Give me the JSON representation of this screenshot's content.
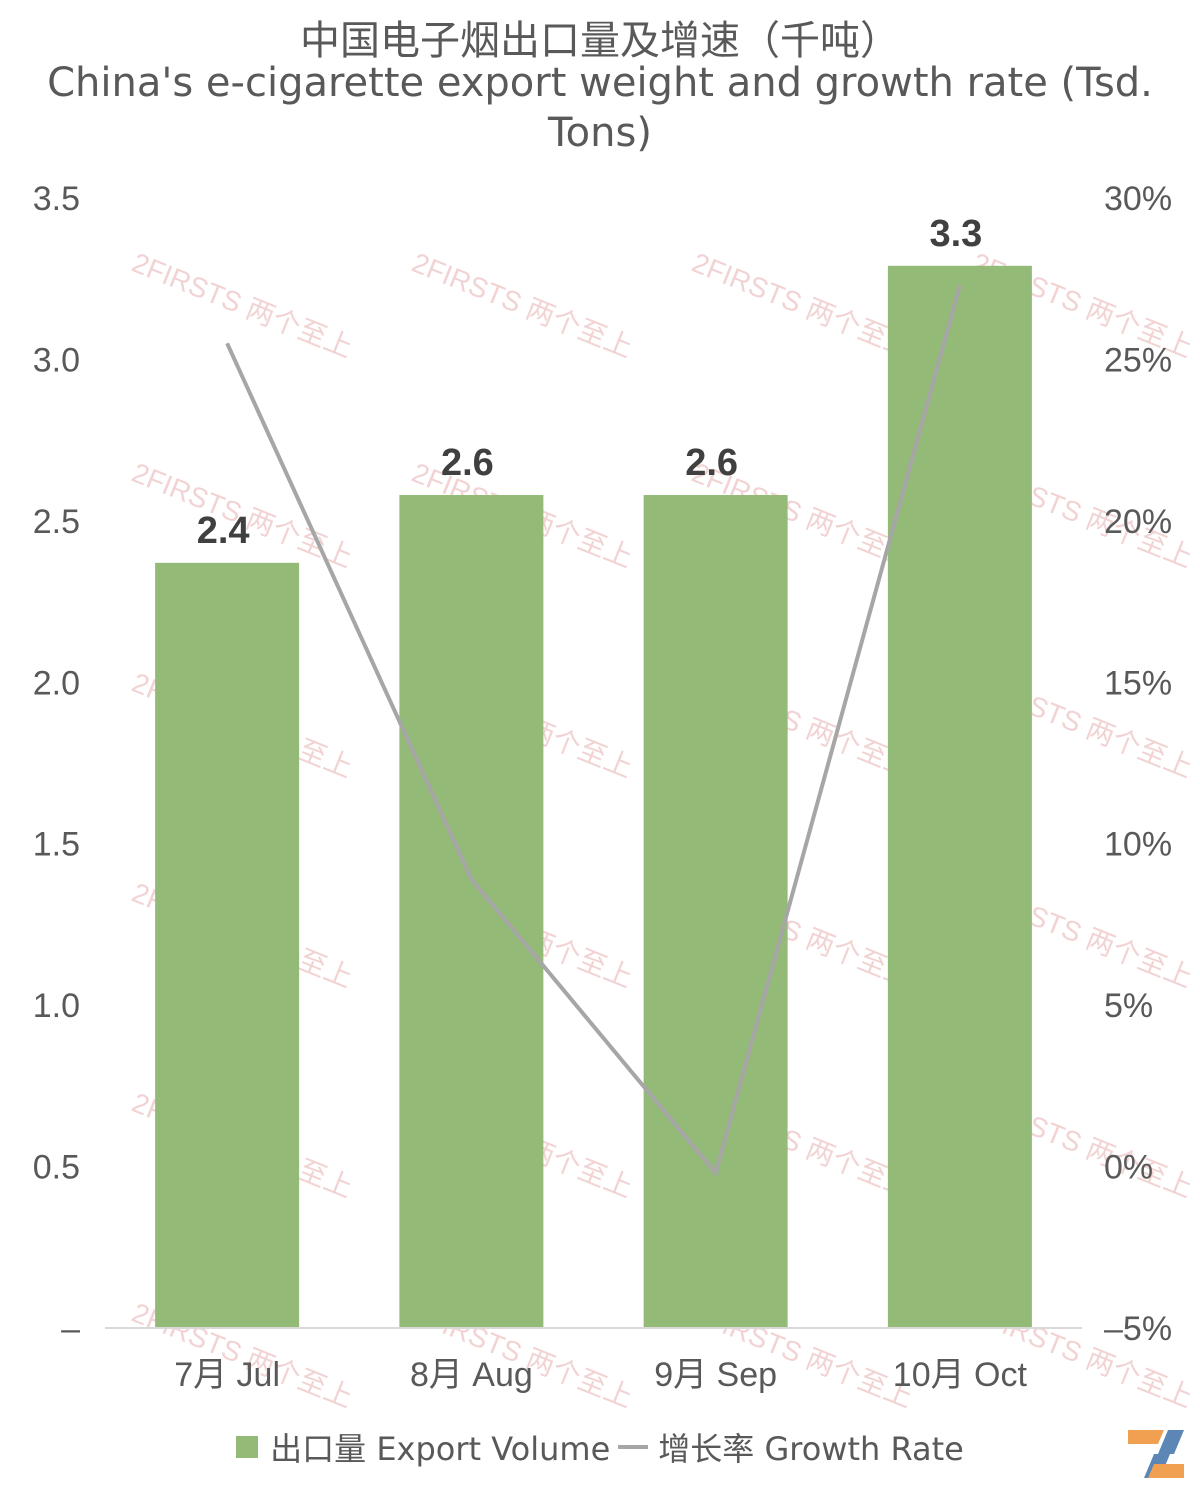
{
  "title_cn": "中国电子烟出口量及增速（千吨）",
  "title_en": "China's e-cigarette export weight and growth rate (Tsd. Tons)",
  "colors": {
    "bar": "#93BA76",
    "line": "#A6A6A6",
    "watermark": "#E8B0B0"
  },
  "watermark_text": "2FIRSTS 两个至上",
  "chart_data": {
    "type": "bar",
    "categories": [
      "7月 Jul",
      "8月 Aug",
      "9月 Sep",
      "10月 Oct"
    ],
    "series": [
      {
        "name": "出口量 Export Volume",
        "type": "bar",
        "axis": "left",
        "values": [
          2.37,
          2.58,
          2.58,
          3.29
        ],
        "data_labels": [
          "2.4",
          "2.6",
          "2.6",
          "3.3"
        ]
      },
      {
        "name": "增长率 Growth Rate",
        "type": "line",
        "axis": "right",
        "values": [
          25.5,
          8.9,
          -0.2,
          27.3
        ]
      }
    ],
    "y_left": {
      "ylim": [
        0,
        3.5
      ],
      "ticks": [
        0,
        0.5,
        1.0,
        1.5,
        2.0,
        2.5,
        3.0,
        3.5
      ],
      "tick_labels": [
        "–",
        "0.5",
        "1.0",
        "1.5",
        "2.0",
        "2.5",
        "3.0",
        "3.5"
      ]
    },
    "y_right": {
      "ylim": [
        -5,
        30
      ],
      "ticks": [
        -5,
        0,
        5,
        10,
        15,
        20,
        25,
        30
      ],
      "tick_labels": [
        "–5%",
        "0%",
        "5%",
        "10%",
        "15%",
        "20%",
        "25%",
        "30%"
      ]
    },
    "grid": false,
    "legend_position": "bottom"
  },
  "legend": {
    "bar_label": "出口量 Export Volume",
    "line_label": "增长率 Growth Rate"
  }
}
